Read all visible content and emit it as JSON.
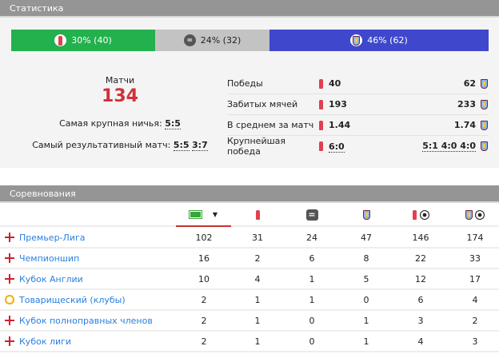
{
  "stats": {
    "title": "Статистика",
    "bar": [
      {
        "label": "30% (40)",
        "color": "#22b14c",
        "percent": 30
      },
      {
        "label": "24% (32)",
        "color": "#c3c3c3",
        "percent": 24
      },
      {
        "label": "46% (62)",
        "color": "#3f48cc",
        "percent": 46
      }
    ],
    "matches_label": "Матчи",
    "matches_value": "134",
    "biggest_draw_label": "Самая крупная ничья:",
    "biggest_draw": "5:5",
    "highest_scoring_label": "Самый результативный матч:",
    "highest_scoring": [
      "5:5",
      "3:7"
    ],
    "rows": [
      {
        "label": "Победы",
        "home": "40",
        "away": "62"
      },
      {
        "label": "Забитых мячей",
        "home": "193",
        "away": "233"
      },
      {
        "label": "В среднем за матч",
        "home": "1.44",
        "away": "1.74"
      },
      {
        "label": "Крупнейшая победа",
        "home": "6:0",
        "away": "5:1 4:0 4:0"
      }
    ]
  },
  "competitions": {
    "title": "Соревнования",
    "columns": [
      "matches-pitch-icon",
      "home-win-icon",
      "draw-icon",
      "away-win-icon",
      "home-goals-icon",
      "away-goals-icon"
    ],
    "rows": [
      {
        "name": "Премьер-Лига",
        "flag": "england",
        "values": [
          "102",
          "31",
          "24",
          "47",
          "146",
          "174"
        ]
      },
      {
        "name": "Чемпионшип",
        "flag": "england",
        "values": [
          "16",
          "2",
          "6",
          "8",
          "22",
          "33"
        ]
      },
      {
        "name": "Кубок Англии",
        "flag": "england",
        "values": [
          "10",
          "4",
          "1",
          "5",
          "12",
          "17"
        ]
      },
      {
        "name": "Товарищеский (клубы)",
        "flag": "peace",
        "values": [
          "2",
          "1",
          "1",
          "0",
          "6",
          "4"
        ]
      },
      {
        "name": "Кубок полноправных членов",
        "flag": "england",
        "values": [
          "2",
          "1",
          "0",
          "1",
          "3",
          "2"
        ]
      },
      {
        "name": "Кубок лиги",
        "flag": "england",
        "values": [
          "2",
          "1",
          "0",
          "1",
          "4",
          "3"
        ]
      }
    ]
  }
}
